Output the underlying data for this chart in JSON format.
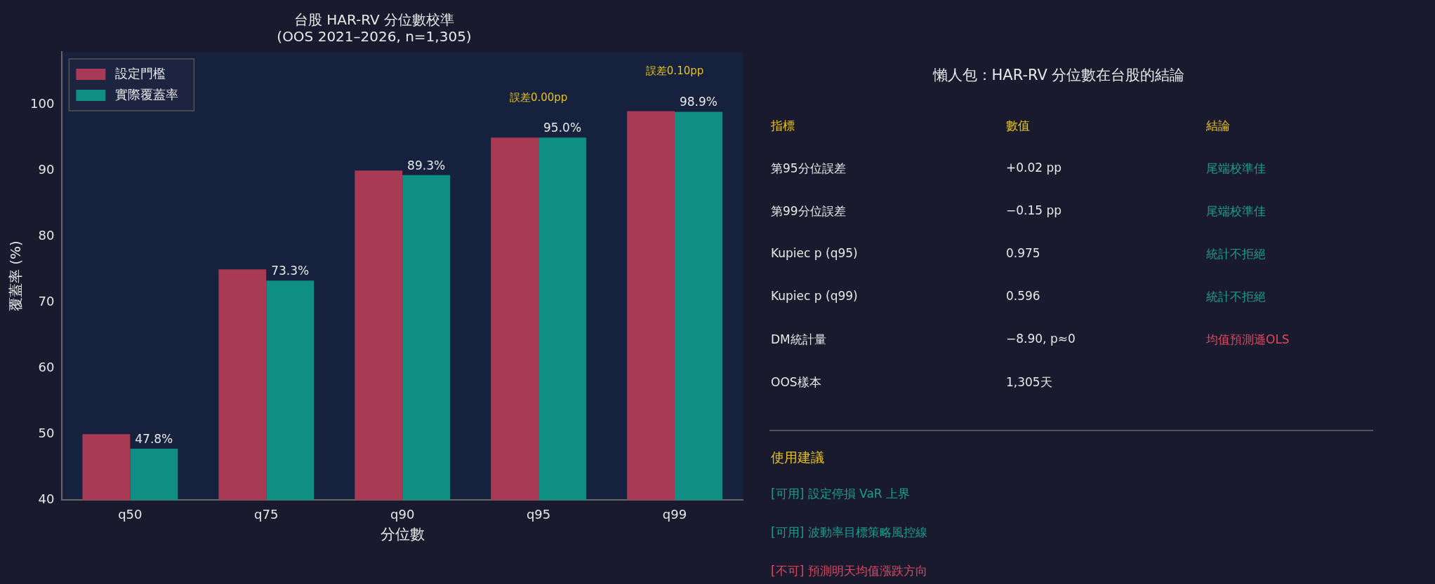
{
  "chart_data": [
    {
      "type": "bar",
      "title": "台股 HAR-RV 分位數校準",
      "subtitle": "(OOS 2021–2026, n=1,305)",
      "xlabel": "分位數",
      "ylabel": "覆蓋率 (%)",
      "categories": [
        "q50",
        "q75",
        "q90",
        "q95",
        "q99"
      ],
      "series": [
        {
          "name": "設定門檻",
          "color": "#a83a55",
          "values": [
            50,
            75,
            90,
            95,
            99
          ]
        },
        {
          "name": "實際覆蓋率",
          "color": "#0f8f84",
          "values": [
            47.8,
            73.3,
            89.3,
            95.0,
            98.9
          ],
          "value_labels": [
            "47.8%",
            "73.3%",
            "89.3%",
            "95.0%",
            "98.9%"
          ]
        }
      ],
      "ylim": [
        40,
        108
      ],
      "yticks": [
        40,
        50,
        60,
        70,
        80,
        90,
        100
      ],
      "grid": false,
      "legend": "top left",
      "annotations": [
        "誤差0.00pp",
        "誤差0.10pp"
      ]
    },
    {
      "type": "other",
      "title": "懶人包：HAR-RV 分位數在台股的結論",
      "annotations": [
        "指標",
        "數值",
        "結論",
        "第95分位誤差",
        "+0.02 pp",
        "尾端校準佳",
        "第99分位誤差",
        "−0.15 pp",
        "尾端校準佳",
        "Kupiec p (q95)",
        "0.975",
        "統計不拒絕",
        "Kupiec p (q99)",
        "0.596",
        "統計不拒絕",
        "DM統計量",
        "−8.90, p≈0",
        "均值預測遜OLS",
        "OOS樣本",
        "1,305天",
        "使用建議",
        "[可用]  設定停損 VaR 上界",
        "[可用]  波動率目標策略風控線",
        "[不可]  預測明天均值漲跌方向"
      ],
      "colors": [
        "#e8c31a",
        "#e8c31a",
        "#e8c31a",
        "#e8e8e8",
        "#e8e8e8",
        "#1a9e8f",
        "#e8e8e8",
        "#e8e8e8",
        "#1a9e8f",
        "#e8e8e8",
        "#e8e8e8",
        "#1a9e8f",
        "#e8e8e8",
        "#e8e8e8",
        "#1a9e8f",
        "#e8e8e8",
        "#e8e8e8",
        "#e0475f",
        "#e8e8e8",
        "#e8e8e8",
        "#e8c31a",
        "#1a9e8f",
        "#1a9e8f",
        "#e0475f"
      ]
    }
  ]
}
